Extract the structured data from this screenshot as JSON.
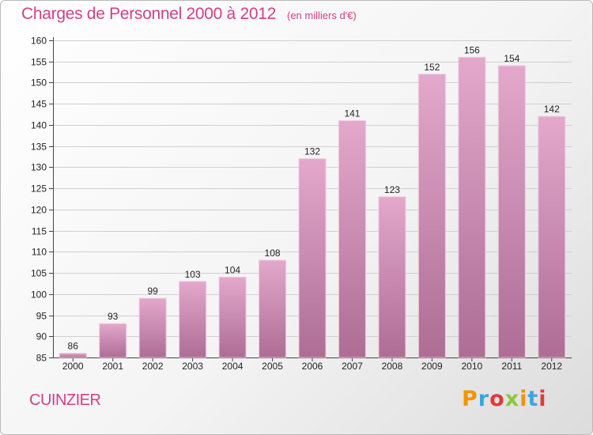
{
  "header": {
    "title": "Charges de Personnel 2000 à 2012",
    "subtitle": "(en milliers d'€)"
  },
  "footer": {
    "city": "CUINZIER",
    "logo_text": "Proxiti",
    "logo_colors": [
      "#f29400",
      "#3aa6dd",
      "#e03a3a",
      "#8cc63f",
      "#f29400",
      "#3aa6dd",
      "#e03a3a"
    ]
  },
  "colors": {
    "title": "#d43f86",
    "bar_top": "#e3a8cc",
    "bar_bottom": "#ad6d95",
    "bar_edge": "#f2c8e0",
    "grid": "#cfcfcf"
  },
  "chart_data": {
    "type": "bar",
    "categories": [
      "2000",
      "2001",
      "2002",
      "2003",
      "2004",
      "2005",
      "2006",
      "2007",
      "2008",
      "2009",
      "2010",
      "2011",
      "2012"
    ],
    "values": [
      86,
      93,
      99,
      103,
      104,
      108,
      132,
      141,
      123,
      152,
      156,
      154,
      142
    ],
    "ylim": [
      85,
      160
    ],
    "yticks": [
      85,
      90,
      95,
      100,
      105,
      110,
      115,
      120,
      125,
      130,
      135,
      140,
      145,
      150,
      155,
      160
    ],
    "grid": true,
    "data_labels": true
  }
}
